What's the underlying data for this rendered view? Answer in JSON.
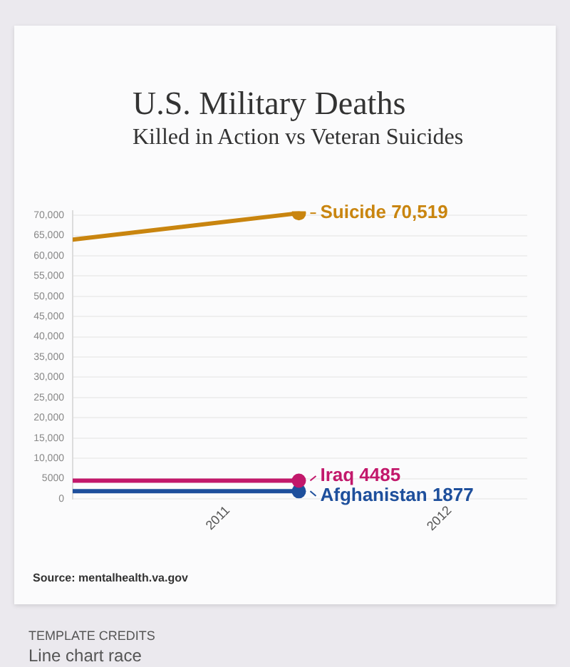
{
  "chart_data": {
    "type": "line",
    "title": "U.S. Military Deaths",
    "subtitle": "Killed in Action vs Veteran Suicides",
    "x": [
      2010.3,
      2011.32
    ],
    "xlim": [
      2010.3,
      2012.35
    ],
    "xticks": [
      2011,
      2012
    ],
    "ylim": [
      0,
      71000
    ],
    "yticks": [
      0,
      5000,
      {
        "value": 10000,
        "label": "10,000"
      },
      {
        "value": 15000,
        "label": "15,000"
      },
      {
        "value": 20000,
        "label": "20,000"
      },
      {
        "value": 25000,
        "label": "25,000"
      },
      {
        "value": 30000,
        "label": "30,000"
      },
      {
        "value": 35000,
        "label": "35,000"
      },
      {
        "value": 40000,
        "label": "40,000"
      },
      {
        "value": 45000,
        "label": "45,000"
      },
      {
        "value": 50000,
        "label": "50,000"
      },
      {
        "value": 55000,
        "label": "55,000"
      },
      {
        "value": 60000,
        "label": "60,000"
      },
      {
        "value": 65000,
        "label": "65,000"
      },
      {
        "value": 70000,
        "label": "70,000"
      }
    ],
    "series": [
      {
        "name": "Suicide",
        "color": "#c9850f",
        "values": [
          64000,
          70519
        ],
        "value_labels": [
          null,
          "70,519"
        ]
      },
      {
        "name": "Iraq",
        "color": "#c2186b",
        "values": [
          4485,
          4485
        ],
        "value_labels": [
          null,
          "4485"
        ]
      },
      {
        "name": "Afghanistan",
        "color": "#1e4f9c",
        "values": [
          1877,
          1877
        ],
        "value_labels": [
          null,
          "1877"
        ]
      }
    ],
    "grid": "y",
    "marker": "circle",
    "line_style": "solid",
    "annotations": [
      "Source: mentalhealth.va.gov",
      "TEMPLATE CREDITS",
      "Line chart race"
    ]
  }
}
